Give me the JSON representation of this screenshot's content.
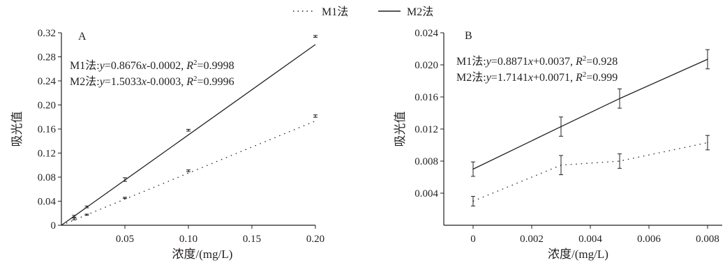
{
  "legend": {
    "items": [
      {
        "label": "M1法",
        "style": "dotted"
      },
      {
        "label": "M2法",
        "style": "solid"
      }
    ],
    "placement": "top-center"
  },
  "colors": {
    "ink": "#231f20",
    "background": "#ffffff"
  },
  "chart_data": [
    {
      "type": "line",
      "panel_label": "A",
      "xlabel": "浓度/(mg/L)",
      "ylabel": "吸光值",
      "xlim": [
        0,
        0.2
      ],
      "ylim": [
        0,
        0.32
      ],
      "xticks": [
        "0.05",
        "0.10",
        "0.15",
        "0.20"
      ],
      "yticks": [
        "0",
        "0.04",
        "0.08",
        "0.12",
        "0.16",
        "0.20",
        "0.24",
        "0.28",
        "0.32"
      ],
      "grid": false,
      "equations": [
        {
          "prefix": "M1法:",
          "var_y": "y",
          "mid": "=0.8676",
          "var_x": "x",
          "rest": "-0.0002, ",
          "r": "R",
          "sup": "2",
          "r_val": "=0.9998"
        },
        {
          "prefix": "M2法:",
          "var_y": "y",
          "mid": "=1.5033",
          "var_x": "x",
          "rest": "-0.0003, ",
          "r": "R",
          "sup": "2",
          "r_val": "=0.9996"
        }
      ],
      "series": [
        {
          "name": "M1法",
          "style": "dotted",
          "x": [
            0.01,
            0.02,
            0.05,
            0.1,
            0.2
          ],
          "y": [
            0.0105,
            0.0175,
            0.0455,
            0.0905,
            0.1815
          ],
          "err": [
            0.0015,
            0.001,
            0.001,
            0.0015,
            0.002
          ],
          "fit": {
            "slope": 0.8676,
            "intercept": -0.0002
          }
        },
        {
          "name": "M2法",
          "style": "solid",
          "x": [
            0.01,
            0.02,
            0.05,
            0.1,
            0.2
          ],
          "y": [
            0.015,
            0.0305,
            0.076,
            0.158,
            0.314
          ],
          "err": [
            0.0015,
            0.0015,
            0.003,
            0.0015,
            0.0015
          ],
          "fit": {
            "slope": 1.5033,
            "intercept": -0.0003
          }
        }
      ]
    },
    {
      "type": "line",
      "panel_label": "B",
      "xlabel": "浓度/(mg/L)",
      "ylabel": "吸光值",
      "xlim": [
        -0.001,
        0.0085
      ],
      "ylim": [
        0,
        0.024
      ],
      "xticks": [
        "0",
        "0.002",
        "0.004",
        "0.006",
        "0.008"
      ],
      "yticks": [
        "0.004",
        "0.008",
        "0.012",
        "0.016",
        "0.020",
        "0.024"
      ],
      "grid": false,
      "equations": [
        {
          "prefix": "M1法:",
          "var_y": "y",
          "mid": "=0.8871",
          "var_x": "x",
          "rest": "+0.0037, ",
          "r": "R",
          "sup": "2",
          "r_val": "=0.928"
        },
        {
          "prefix": "M2法:",
          "var_y": "y",
          "mid": "=1.7141",
          "var_x": "x",
          "rest": "+0.0071, ",
          "r": "R",
          "sup": "2",
          "r_val": "=0.999"
        }
      ],
      "series": [
        {
          "name": "M1法",
          "style": "dotted",
          "x": [
            0,
            0.003,
            0.005,
            0.008
          ],
          "y": [
            0.003,
            0.0075,
            0.008,
            0.0103
          ],
          "err": [
            0.0006,
            0.0012,
            0.0009,
            0.0009
          ]
        },
        {
          "name": "M2法",
          "style": "solid",
          "x": [
            0,
            0.003,
            0.005,
            0.008
          ],
          "y": [
            0.007,
            0.0123,
            0.0158,
            0.0207
          ],
          "err": [
            0.0009,
            0.0012,
            0.0012,
            0.0012
          ]
        }
      ]
    }
  ]
}
